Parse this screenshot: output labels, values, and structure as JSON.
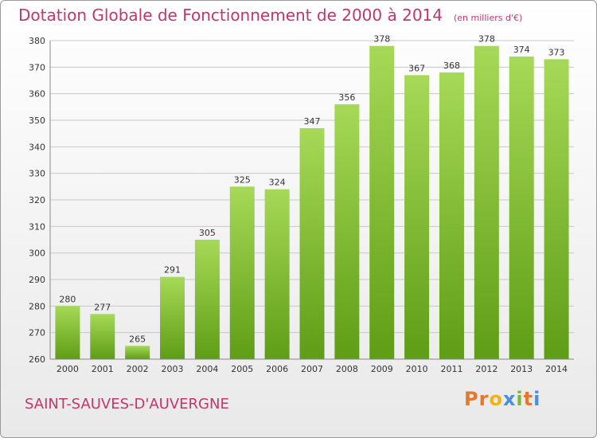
{
  "header": {
    "title": "Dotation Globale de Fonctionnement de 2000 à 2014",
    "unit": "(en milliers d'€)"
  },
  "footer": {
    "place": "SAINT-SAUVES-D'AUVERGNE",
    "logo": "Proxiti",
    "logo_colors": [
      "#e8762b",
      "#e8762b",
      "#f2b118",
      "#4b8fd6",
      "#7ab844",
      "#e8762b",
      "#4b8fd6"
    ]
  },
  "chart_data": {
    "type": "bar",
    "categories": [
      "2000",
      "2001",
      "2002",
      "2003",
      "2004",
      "2005",
      "2006",
      "2007",
      "2008",
      "2009",
      "2010",
      "2011",
      "2012",
      "2013",
      "2014"
    ],
    "values": [
      280,
      277,
      265,
      291,
      305,
      325,
      324,
      347,
      356,
      378,
      367,
      368,
      378,
      374,
      373
    ],
    "ylim": [
      260,
      380
    ],
    "yticks": [
      260,
      270,
      280,
      290,
      300,
      310,
      320,
      330,
      340,
      350,
      360,
      370,
      380
    ],
    "grid": true,
    "bar_color_light": "#a6d957",
    "bar_color_dark": "#5f9d16",
    "title_color": "#c2376a"
  }
}
